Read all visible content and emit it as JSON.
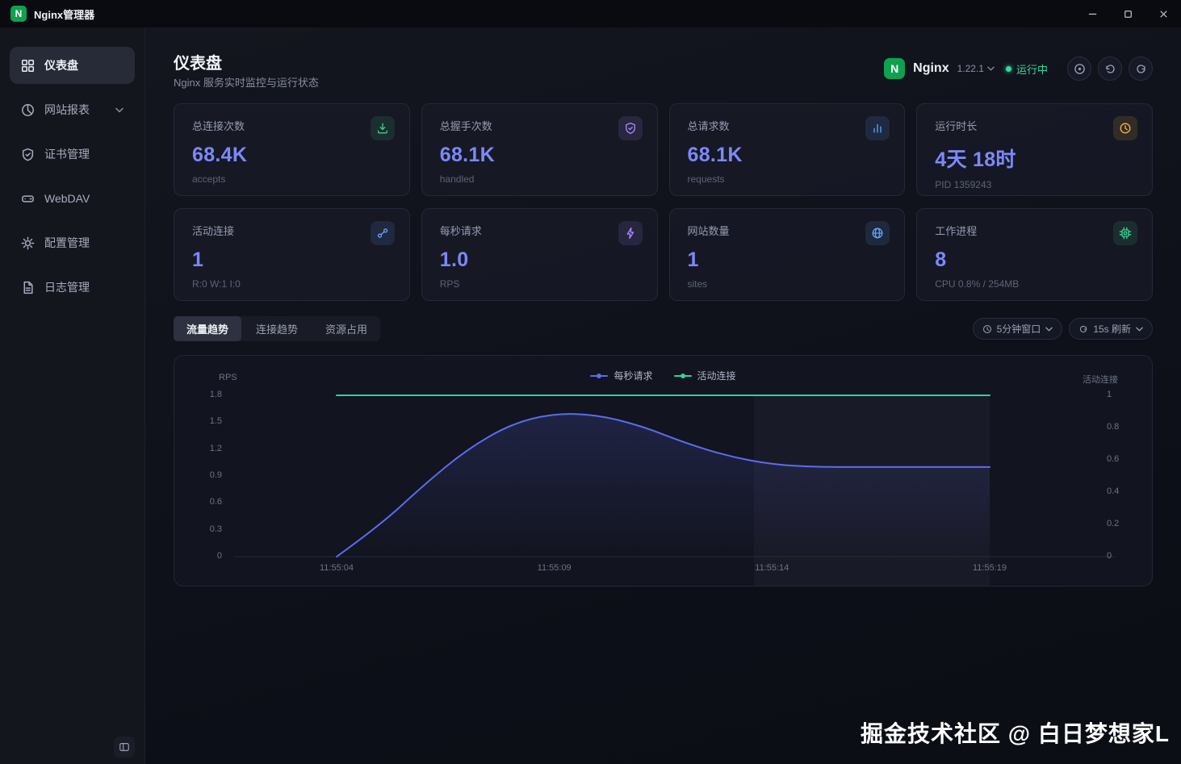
{
  "titlebar": {
    "app_title": "Nginx管理器",
    "logo_letter": "N"
  },
  "sidebar": {
    "items": [
      {
        "label": "仪表盘"
      },
      {
        "label": "网站报表"
      },
      {
        "label": "证书管理"
      },
      {
        "label": "WebDAV"
      },
      {
        "label": "配置管理"
      },
      {
        "label": "日志管理"
      }
    ]
  },
  "header": {
    "title": "仪表盘",
    "subtitle": "Nginx 服务实时监控与运行状态",
    "logo_letter": "N",
    "server_name": "Nginx",
    "version": "1.22.1",
    "status": "运行中"
  },
  "stats_row1": [
    {
      "label": "总连接次数",
      "value": "68.4K",
      "sub": "accepts"
    },
    {
      "label": "总握手次数",
      "value": "68.1K",
      "sub": "handled"
    },
    {
      "label": "总请求数",
      "value": "68.1K",
      "sub": "requests"
    },
    {
      "label": "运行时长",
      "value": "4天 18时",
      "sub": "PID 1359243"
    }
  ],
  "stats_row2": [
    {
      "label": "活动连接",
      "value": "1",
      "sub": "R:0 W:1 I:0"
    },
    {
      "label": "每秒请求",
      "value": "1.0",
      "sub": "RPS"
    },
    {
      "label": "网站数量",
      "value": "1",
      "sub": "sites"
    },
    {
      "label": "工作进程",
      "value": "8",
      "sub": "CPU 0.8% / 254MB"
    }
  ],
  "tabs": [
    {
      "label": "流量趋势",
      "active": true
    },
    {
      "label": "连接趋势",
      "active": false
    },
    {
      "label": "资源占用",
      "active": false
    }
  ],
  "controls": {
    "window_select": "5分钟窗口",
    "refresh_select": "15s 刷新"
  },
  "chart_data": {
    "type": "line",
    "x_ticks": [
      {
        "label": "11:55:04",
        "t": 0
      },
      {
        "label": "11:55:09",
        "t": 5
      },
      {
        "label": "11:55:14",
        "t": 10
      },
      {
        "label": "11:55:19",
        "t": 15
      }
    ],
    "left_axis": {
      "label": "RPS",
      "ticks": [
        1.8,
        1.5,
        1.2,
        0.9,
        0.6,
        0.3,
        0
      ],
      "max": 1.8
    },
    "right_axis": {
      "label": "活动连接",
      "ticks": [
        1,
        0.8,
        0.6,
        0.4,
        0.2,
        0
      ],
      "max": 1.0
    },
    "series": [
      {
        "name": "每秒请求",
        "color": "#5b6cf0",
        "axis": "left",
        "area": true,
        "x": [
          0,
          1,
          2,
          3,
          4,
          5,
          6,
          7,
          8,
          9,
          10,
          11,
          12,
          13,
          14,
          15
        ],
        "values": [
          0,
          0.35,
          0.8,
          1.2,
          1.48,
          1.6,
          1.58,
          1.46,
          1.27,
          1.12,
          1.03,
          1.0,
          1.0,
          1.0,
          1.0,
          1.0
        ]
      },
      {
        "name": "活动连接",
        "color": "#2fd39b",
        "axis": "right",
        "area": false,
        "x": [
          0,
          15
        ],
        "values": [
          1,
          1
        ]
      }
    ]
  },
  "watermark": "掘金技术社区 @ 白日梦想家L",
  "colors": {
    "accent_value": "#7d88f8",
    "nginx_green": "#0fa050",
    "status_green": "#35d89b",
    "rps_line": "#5b6cf0",
    "connections_line": "#2fd39b"
  }
}
